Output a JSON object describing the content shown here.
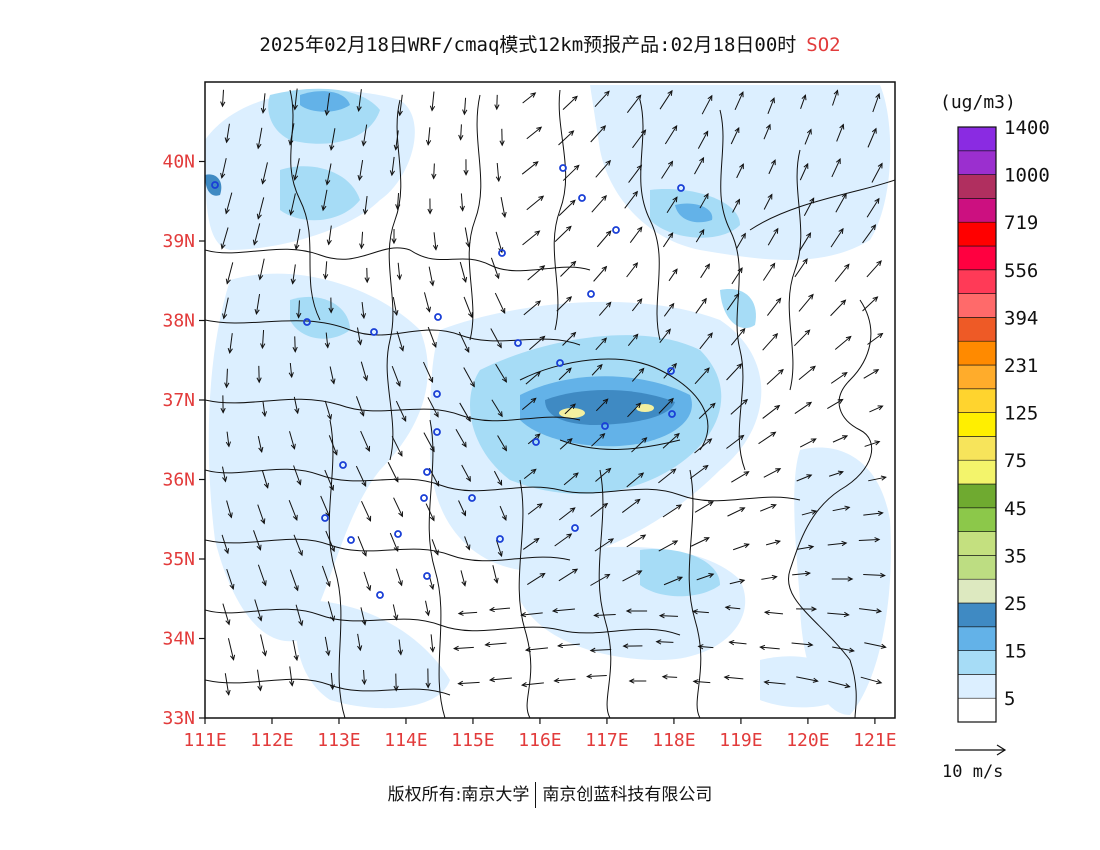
{
  "title": {
    "main": "2025年02月18日WRF/cmaq模式12km预报产品:02月18日00时",
    "species": "SO2",
    "species_color": "#e23b3b"
  },
  "unit": "(ug/m3)",
  "wind_reference": "10 m/s",
  "footer": {
    "left": "版权所有:南京大学",
    "right": "南京创蓝科技有限公司"
  },
  "axes": {
    "lon_labels": [
      "111E",
      "112E",
      "113E",
      "114E",
      "115E",
      "116E",
      "117E",
      "118E",
      "119E",
      "120E",
      "121E"
    ],
    "lat_labels": [
      "33N",
      "34N",
      "35N",
      "36N",
      "37N",
      "38N",
      "39N",
      "40N"
    ],
    "lon_range": [
      111,
      121.3
    ],
    "lat_range": [
      33,
      41
    ],
    "label_color": "#e23b3b"
  },
  "colorbar": {
    "colors": [
      "#ffffff",
      "#dcefff",
      "#a6dcf6",
      "#63b2e8",
      "#3f8ac3",
      "#dde9c0",
      "#bddd82",
      "#c4e07f",
      "#8cc84a",
      "#6faa30",
      "#f3f46b",
      "#f7e45b",
      "#ffef00",
      "#ffd42e",
      "#ffac2b",
      "#ff8a00",
      "#ee5a26",
      "#ff6a6a",
      "#ff3a57",
      "#ff0040",
      "#ff0000",
      "#cc1080",
      "#b02f5f",
      "#9b2fcf",
      "#8a2be2"
    ],
    "labels": [
      "5",
      "15",
      "25",
      "35",
      "45",
      "75",
      "125",
      "231",
      "394",
      "556",
      "719",
      "1000",
      "1400"
    ]
  },
  "legend_colors": {
    "level1": "#dcefff",
    "level2": "#a6dcf6",
    "level3": "#63b2e8",
    "level4": "#3f8ac3",
    "level5": "#f3f0a0"
  }
}
